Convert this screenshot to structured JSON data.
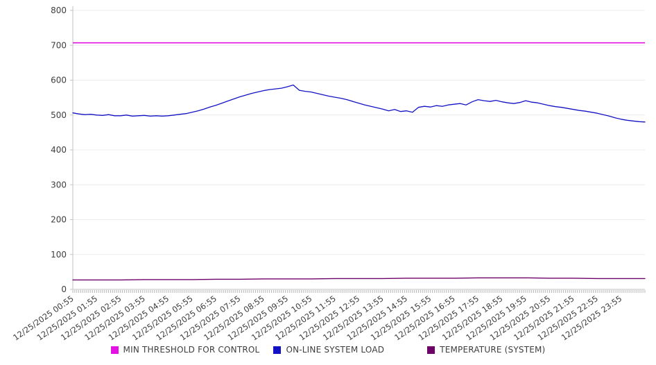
{
  "chart_data": {
    "type": "line",
    "title": "",
    "x_axis": {
      "date": "12/25/2025",
      "labels": [
        "12/25/2025 00:55",
        "12/25/2025 01:55",
        "12/25/2025 02:55",
        "12/25/2025 03:55",
        "12/25/2025 04:55",
        "12/25/2025 05:55",
        "12/25/2025 06:55",
        "12/25/2025 07:55",
        "12/25/2025 08:55",
        "12/25/2025 09:55",
        "12/25/2025 10:55",
        "12/25/2025 11:55",
        "12/25/2025 12:55",
        "12/25/2025 13:55",
        "12/25/2025 14:55",
        "12/25/2025 15:55",
        "12/25/2025 16:55",
        "12/25/2025 17:55",
        "12/25/2025 18:55",
        "12/25/2025 19:55",
        "12/25/2025 20:55",
        "12/25/2025 21:55",
        "12/25/2025 22:55",
        "12/25/2025 23:55"
      ],
      "minor_tick_interval_minutes": 5,
      "minor_tick_count": 288,
      "label_rotation_deg": -35
    },
    "y_axis": {
      "min": 0,
      "max": 800,
      "step": 100,
      "ticks": [
        0,
        100,
        200,
        300,
        400,
        500,
        600,
        700,
        800
      ]
    },
    "grid": "horizontal-only",
    "legend_position": "bottom-center",
    "series": [
      {
        "name": "MIN THRESHOLD FOR CONTROL",
        "type": "constant-threshold",
        "color": "#e312e3",
        "value": 707
      },
      {
        "name": "ON-LINE SYSTEM LOAD",
        "type": "line",
        "color": "#1212c4",
        "interval_minutes": 15,
        "start_time": "00:55",
        "values": [
          506,
          503,
          501,
          502,
          500,
          499,
          501,
          498,
          498,
          500,
          497,
          498,
          499,
          497,
          498,
          497,
          498,
          500,
          502,
          504,
          508,
          512,
          517,
          523,
          528,
          534,
          540,
          546,
          552,
          557,
          562,
          566,
          570,
          573,
          575,
          577,
          581,
          586,
          571,
          568,
          566,
          562,
          558,
          554,
          551,
          548,
          544,
          539,
          534,
          529,
          525,
          521,
          517,
          512,
          516,
          510,
          512,
          508,
          522,
          525,
          523,
          527,
          525,
          529,
          531,
          533,
          529,
          538,
          544,
          541,
          539,
          542,
          538,
          535,
          533,
          536,
          541,
          537,
          535,
          531,
          527,
          524,
          522,
          519,
          516,
          513,
          511,
          508,
          505,
          501,
          497,
          492,
          488,
          485,
          483,
          481,
          480
        ]
      },
      {
        "name": "TEMPERATURE (SYSTEM)",
        "type": "line",
        "color": "#6e0169",
        "interval_minutes": 60,
        "start_time": "00:55",
        "values": [
          27,
          27,
          27,
          28,
          28,
          28,
          29,
          29,
          30,
          30,
          30,
          31,
          31,
          31,
          32,
          32,
          32,
          33,
          33,
          33,
          32,
          32,
          31,
          31,
          31
        ]
      }
    ]
  },
  "legend": {
    "items": [
      {
        "label": "MIN THRESHOLD FOR CONTROL"
      },
      {
        "label": "ON-LINE SYSTEM LOAD"
      },
      {
        "label": "TEMPERATURE (SYSTEM)"
      }
    ]
  },
  "style": {
    "background": "#ffffff",
    "gridline_color": "#ececec",
    "axis_color": "#c2c2c2",
    "minor_tick_color": "#b5b5b5",
    "label_color": "#3d3d3d"
  }
}
